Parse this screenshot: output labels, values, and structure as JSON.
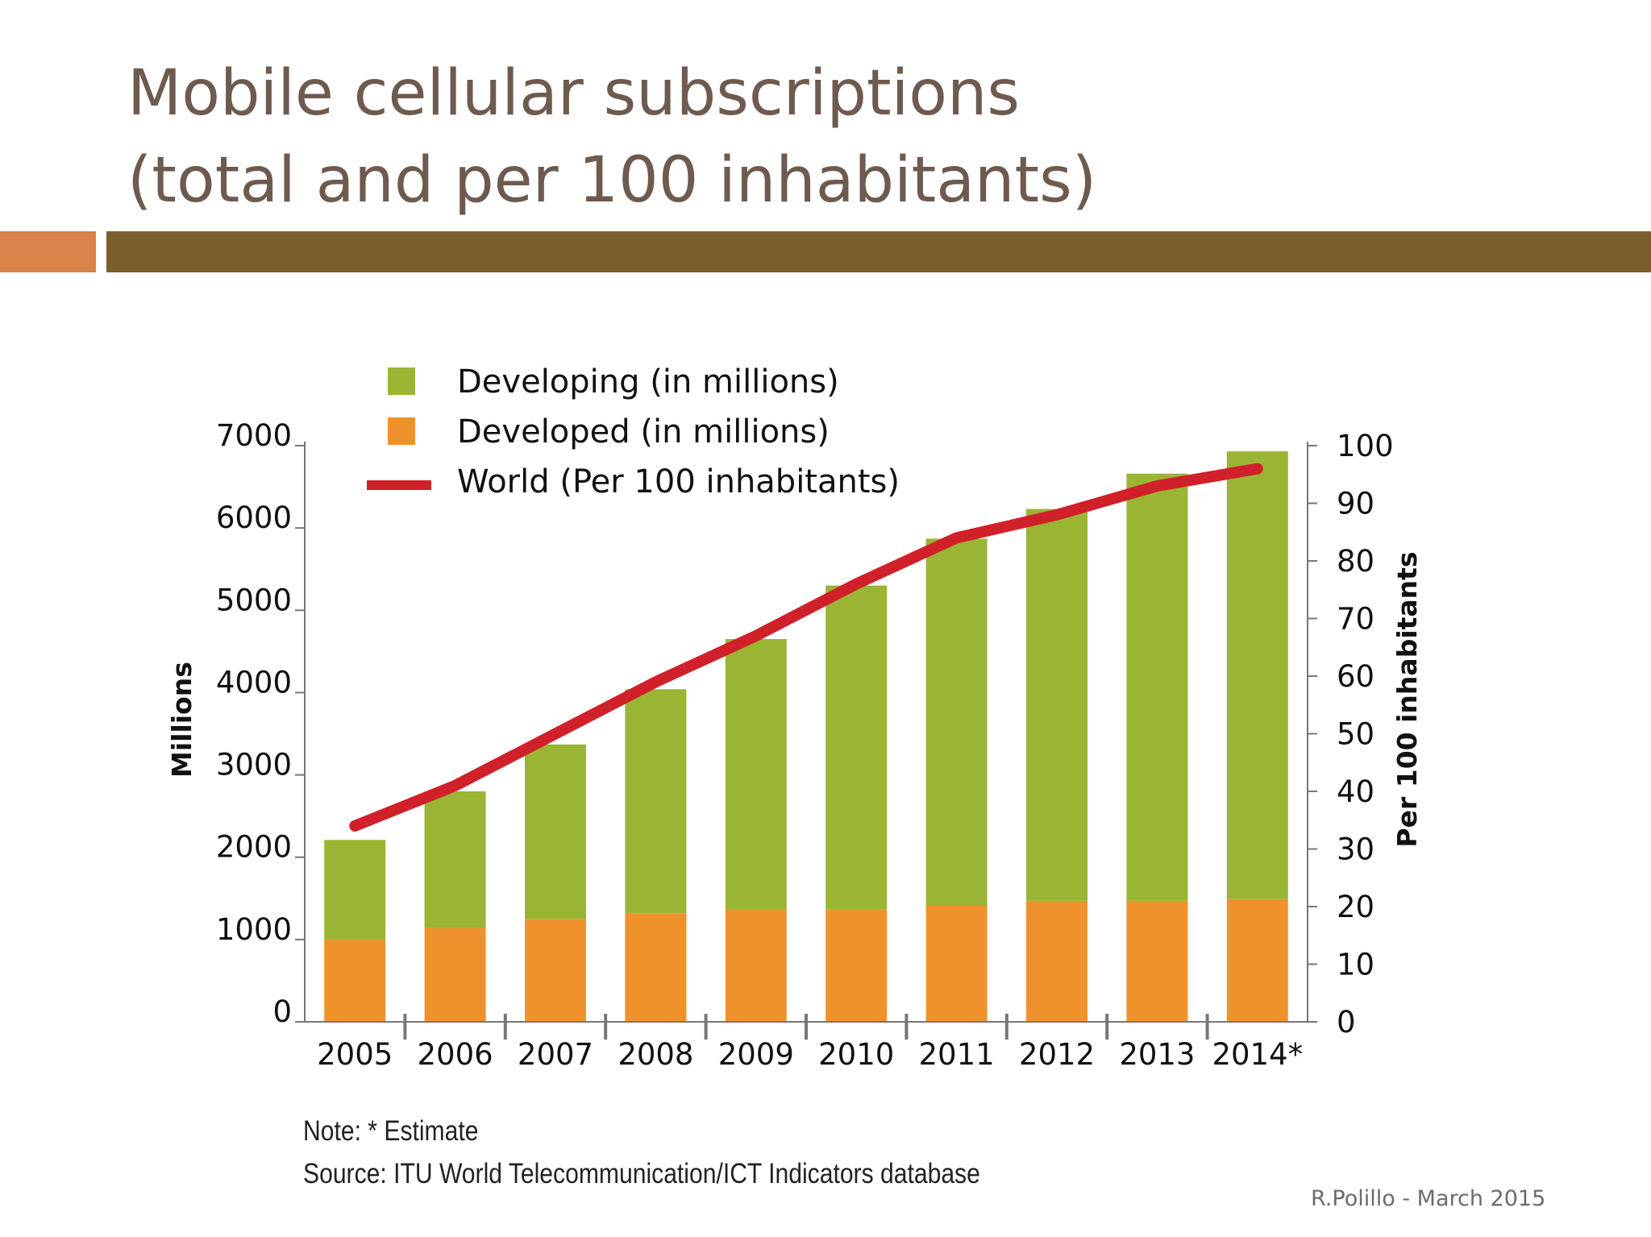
{
  "slide": {
    "title_line1": "Mobile cellular subscriptions",
    "title_line2": "(total and per 100 inhabitants)",
    "accent_color": "#d9824a",
    "rule_color": "#7a5e2b",
    "note": "Note: * Estimate",
    "source": "Source:  ITU World Telecommunication/ICT Indicators database",
    "footer": "R.Polillo - March 2015"
  },
  "chart_data": {
    "type": "bar",
    "stacked": true,
    "categories": [
      "2005",
      "2006",
      "2007",
      "2008",
      "2009",
      "2010",
      "2011",
      "2012",
      "2013",
      "2014*"
    ],
    "series": [
      {
        "name": "Developed (in millions)",
        "color": "#f0922b",
        "values": [
          1000,
          1140,
          1250,
          1320,
          1370,
          1370,
          1410,
          1470,
          1470,
          1490
        ]
      },
      {
        "name": "Developing (in millions)",
        "color": "#9ab534",
        "values": [
          1210,
          1660,
          2120,
          2720,
          3280,
          3930,
          4460,
          4760,
          5190,
          5440
        ]
      }
    ],
    "line_series": {
      "name": "World (Per 100 inhabitants)",
      "color": "#d0202a",
      "axis": "right",
      "values": [
        34,
        41,
        50,
        59,
        67,
        76,
        84,
        88,
        93,
        96
      ]
    },
    "ylabel": "Millions",
    "ylabel_right": "Per 100 inhabitants",
    "ylim": [
      0,
      7000
    ],
    "ylim_right": [
      0,
      100
    ],
    "yticks": [
      0,
      1000,
      2000,
      3000,
      4000,
      5000,
      6000,
      7000
    ],
    "yticks_right": [
      0,
      10,
      20,
      30,
      40,
      50,
      60,
      70,
      80,
      90,
      100
    ],
    "legend": {
      "position": "top-left",
      "entries": [
        "Developing (in millions)",
        "Developed (in millions)",
        "World (Per 100 inhabitants)"
      ]
    },
    "grid": false
  }
}
